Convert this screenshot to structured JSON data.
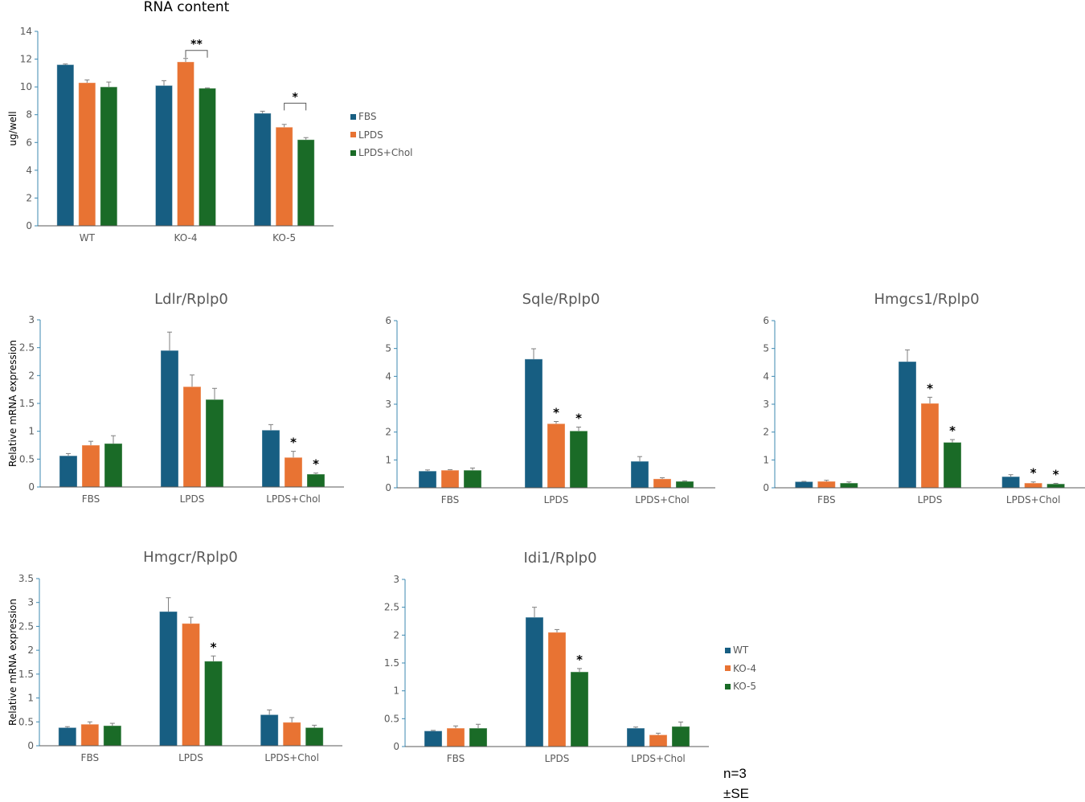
{
  "colors": {
    "blue": "#175e82",
    "orange": "#e87333",
    "green": "#1a6b27",
    "axis": "#3d88b0",
    "baseline": "#595959",
    "text": "#595959",
    "error": "#7f7f7f"
  },
  "notes": {
    "n": "n=3",
    "se": "±SE"
  },
  "chart_data": [
    {
      "id": "rna",
      "type": "bar",
      "title": "RNA content",
      "ylabel": "ug/well",
      "ylim": [
        0,
        14
      ],
      "yticks": [
        "0",
        "2",
        "4",
        "6",
        "8",
        "10",
        "12",
        "14"
      ],
      "categories": [
        "WT",
        "KO-4",
        "KO-5"
      ],
      "series": [
        {
          "name": "FBS",
          "values": [
            11.6,
            10.1,
            8.1
          ],
          "errors": [
            0.05,
            0.35,
            0.15
          ]
        },
        {
          "name": "LPDS",
          "values": [
            10.3,
            11.8,
            7.1
          ],
          "errors": [
            0.2,
            0.25,
            0.2
          ]
        },
        {
          "name": "LPDS+Chol",
          "values": [
            10.0,
            9.9,
            6.2
          ],
          "errors": [
            0.35,
            0.03,
            0.15
          ]
        }
      ],
      "annotations": [
        {
          "type": "bracket",
          "category": 1,
          "from": 1,
          "to": 2,
          "label": "**"
        },
        {
          "type": "bracket",
          "category": 2,
          "from": 1,
          "to": 2,
          "label": "*"
        }
      ],
      "legend": [
        "FBS",
        "LPDS",
        "LPDS+Chol"
      ]
    },
    {
      "id": "ldlr",
      "type": "bar",
      "title": "Ldlr/Rplp0",
      "ylabel": "Relative mRNA expression",
      "ylim": [
        0,
        3
      ],
      "yticks": [
        "0",
        "0.5",
        "1",
        "1.5",
        "2",
        "2.5",
        "3"
      ],
      "categories": [
        "FBS",
        "LPDS",
        "LPDS+Chol"
      ],
      "series": [
        {
          "name": "WT",
          "values": [
            0.56,
            2.45,
            1.02
          ],
          "errors": [
            0.04,
            0.33,
            0.1
          ]
        },
        {
          "name": "KO-4",
          "values": [
            0.75,
            1.8,
            0.53
          ],
          "errors": [
            0.07,
            0.21,
            0.11
          ]
        },
        {
          "name": "KO-5",
          "values": [
            0.78,
            1.57,
            0.23
          ],
          "errors": [
            0.14,
            0.2,
            0.02
          ]
        }
      ],
      "annotations": [
        {
          "type": "star",
          "category": 2,
          "series": 1,
          "label": "*"
        },
        {
          "type": "star",
          "category": 2,
          "series": 2,
          "label": "*"
        }
      ]
    },
    {
      "id": "sqle",
      "type": "bar",
      "title": "Sqle/Rplp0",
      "ylabel": "",
      "ylim": [
        0,
        6
      ],
      "yticks": [
        "0",
        "1",
        "2",
        "3",
        "4",
        "5",
        "6"
      ],
      "categories": [
        "FBS",
        "LPDS",
        "LPDS+Chol"
      ],
      "series": [
        {
          "name": "WT",
          "values": [
            0.6,
            4.62,
            0.95
          ],
          "errors": [
            0.04,
            0.37,
            0.17
          ]
        },
        {
          "name": "KO-4",
          "values": [
            0.63,
            2.3,
            0.32
          ],
          "errors": [
            0.02,
            0.08,
            0.04
          ]
        },
        {
          "name": "KO-5",
          "values": [
            0.63,
            2.04,
            0.23
          ],
          "errors": [
            0.08,
            0.14,
            0.02
          ]
        }
      ],
      "annotations": [
        {
          "type": "star",
          "category": 1,
          "series": 1,
          "label": "*"
        },
        {
          "type": "star",
          "category": 1,
          "series": 2,
          "label": "*"
        }
      ]
    },
    {
      "id": "hmgcs1",
      "type": "bar",
      "title": "Hmgcs1/Rplp0",
      "ylabel": "",
      "ylim": [
        0,
        6
      ],
      "yticks": [
        "0",
        "1",
        "2",
        "3",
        "4",
        "5",
        "6"
      ],
      "categories": [
        "FBS",
        "LPDS",
        "LPDS+Chol"
      ],
      "series": [
        {
          "name": "WT",
          "values": [
            0.22,
            4.53,
            0.4
          ],
          "errors": [
            0.01,
            0.42,
            0.07
          ]
        },
        {
          "name": "KO-4",
          "values": [
            0.23,
            3.03,
            0.17
          ],
          "errors": [
            0.04,
            0.22,
            0.04
          ]
        },
        {
          "name": "KO-5",
          "values": [
            0.17,
            1.63,
            0.14
          ],
          "errors": [
            0.04,
            0.1,
            0.02
          ]
        }
      ],
      "annotations": [
        {
          "type": "star",
          "category": 1,
          "series": 1,
          "label": "*"
        },
        {
          "type": "star",
          "category": 1,
          "series": 2,
          "label": "*"
        },
        {
          "type": "star",
          "category": 2,
          "series": 1,
          "label": "*"
        },
        {
          "type": "star",
          "category": 2,
          "series": 2,
          "label": "*"
        }
      ]
    },
    {
      "id": "hmgcr",
      "type": "bar",
      "title": "Hmgcr/Rplp0",
      "ylabel": "Relative mRNA expression",
      "ylim": [
        0,
        3.5
      ],
      "yticks": [
        "0",
        "0.5",
        "1",
        "1.5",
        "2",
        "2.5",
        "3",
        "3.5"
      ],
      "categories": [
        "FBS",
        "LPDS",
        "LPDS+Chol"
      ],
      "series": [
        {
          "name": "WT",
          "values": [
            0.38,
            2.81,
            0.65
          ],
          "errors": [
            0.02,
            0.29,
            0.1
          ]
        },
        {
          "name": "KO-4",
          "values": [
            0.45,
            2.56,
            0.49
          ],
          "errors": [
            0.05,
            0.13,
            0.1
          ]
        },
        {
          "name": "KO-5",
          "values": [
            0.42,
            1.77,
            0.38
          ],
          "errors": [
            0.05,
            0.11,
            0.05
          ]
        }
      ],
      "annotations": [
        {
          "type": "star",
          "category": 1,
          "series": 2,
          "label": "*"
        }
      ]
    },
    {
      "id": "idi1",
      "type": "bar",
      "title": "Idi1/Rplp0",
      "ylabel": "",
      "ylim": [
        0,
        3
      ],
      "yticks": [
        "0",
        "0.5",
        "1",
        "1.5",
        "2",
        "2.5",
        "3"
      ],
      "categories": [
        "FBS",
        "LPDS",
        "LPDS+Chol"
      ],
      "series": [
        {
          "name": "WT",
          "values": [
            0.28,
            2.32,
            0.33
          ],
          "errors": [
            0.01,
            0.18,
            0.02
          ]
        },
        {
          "name": "KO-4",
          "values": [
            0.33,
            2.05,
            0.21
          ],
          "errors": [
            0.04,
            0.05,
            0.03
          ]
        },
        {
          "name": "KO-5",
          "values": [
            0.33,
            1.34,
            0.36
          ],
          "errors": [
            0.07,
            0.06,
            0.08
          ]
        }
      ],
      "annotations": [
        {
          "type": "star",
          "category": 1,
          "series": 2,
          "label": "*"
        }
      ],
      "legend": [
        "WT",
        "KO-4",
        "KO-5"
      ]
    }
  ]
}
